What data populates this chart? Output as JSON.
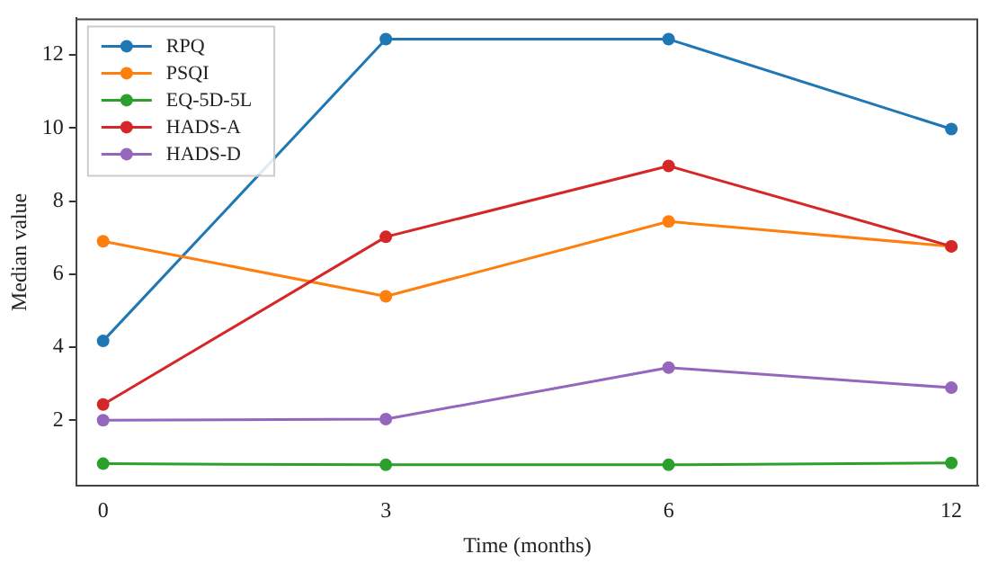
{
  "chart_data": {
    "type": "line",
    "xlabel": "Time (months)",
    "ylabel": "Median value",
    "categories": [
      "0",
      "3",
      "6",
      "12"
    ],
    "ylim": [
      0.2,
      13.0
    ],
    "yticks": [
      2,
      4,
      6,
      8,
      10,
      12
    ],
    "grid": false,
    "legend": "top left",
    "marker": "circle",
    "line_style": "solid",
    "series": [
      {
        "name": "RPQ",
        "color": "#1f77b4",
        "values": [
          4.17,
          12.43,
          12.43,
          9.97
        ]
      },
      {
        "name": "PSQI",
        "color": "#ff7f0e",
        "values": [
          6.9,
          5.39,
          7.44,
          6.76
        ]
      },
      {
        "name": "EQ-5D-5L",
        "color": "#2ca02c",
        "values": [
          0.81,
          0.78,
          0.78,
          0.83
        ]
      },
      {
        "name": "HADS-A",
        "color": "#d62728",
        "values": [
          2.43,
          7.02,
          8.96,
          6.76
        ]
      },
      {
        "name": "HADS-D",
        "color": "#9467bd",
        "values": [
          2.0,
          2.03,
          3.44,
          2.89
        ]
      }
    ]
  }
}
